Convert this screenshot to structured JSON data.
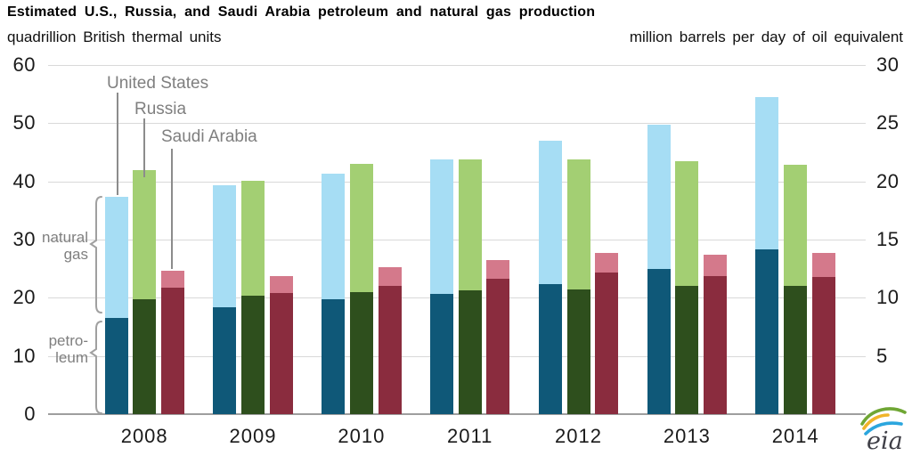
{
  "header": {
    "title": "Estimated U.S., Russia, and Saudi Arabia petroleum and natural gas production",
    "left_axis_title": "quadrillion British thermal units",
    "right_axis_title": "million barrels per day of oil equivalent"
  },
  "chart_data": {
    "type": "bar",
    "stacked": true,
    "title": "Estimated U.S., Russia, and Saudi Arabia petroleum and natural gas production",
    "left_axis": {
      "label": "quadrillion British thermal units",
      "ticks": [
        0,
        10,
        20,
        30,
        40,
        50,
        60
      ],
      "min": 0,
      "max": 60
    },
    "right_axis": {
      "label": "million barrels per day of oil equivalent",
      "ticks": [
        5,
        10,
        15,
        20,
        25,
        30
      ],
      "min": 0,
      "max": 30
    },
    "grid": true,
    "categories": [
      "2008",
      "2009",
      "2010",
      "2011",
      "2012",
      "2013",
      "2014"
    ],
    "series": [
      {
        "name": "United States",
        "petroleum": [
          16.6,
          18.4,
          19.7,
          20.6,
          22.4,
          24.9,
          28.3
        ],
        "natural_gas": [
          20.8,
          21.0,
          21.6,
          23.1,
          24.6,
          24.9,
          26.2
        ],
        "petroleum_color": "#0f5878",
        "natural_gas_color": "#a6ddf4"
      },
      {
        "name": "Russia",
        "petroleum": [
          19.7,
          20.4,
          20.9,
          21.2,
          21.5,
          22.0,
          22.1
        ],
        "natural_gas": [
          22.2,
          19.7,
          22.1,
          22.5,
          22.3,
          21.5,
          20.8
        ],
        "petroleum_color": "#2e4f1d",
        "natural_gas_color": "#a3cf73"
      },
      {
        "name": "Saudi Arabia",
        "petroleum": [
          21.7,
          20.8,
          22.1,
          23.3,
          24.3,
          23.8,
          23.6
        ],
        "natural_gas": [
          2.9,
          3.0,
          3.1,
          3.2,
          3.4,
          3.6,
          4.1
        ],
        "petroleum_color": "#8a2c3e",
        "natural_gas_color": "#d4798b"
      }
    ],
    "legend_labels": [
      {
        "label": "United States"
      },
      {
        "label": "Russia"
      },
      {
        "label": "Saudi Arabia"
      }
    ],
    "segment_labels": {
      "natural_gas_line1": "natural",
      "natural_gas_line2": "gas",
      "petroleum_line1": "petro-",
      "petroleum_line2": "leum"
    },
    "colors": {
      "gridline": "#d9d9d9",
      "axis_line": "#9e9e9e",
      "label_gray": "#7f7f7f"
    }
  },
  "logo": {
    "text": "eia"
  }
}
